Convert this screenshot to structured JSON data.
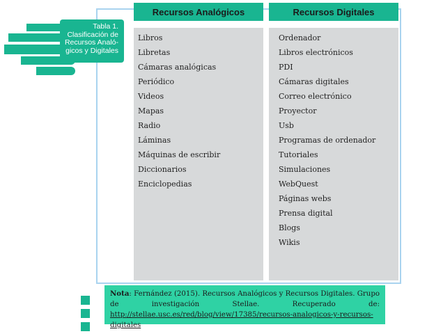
{
  "table_tag": {
    "line1": "Tabla 1.",
    "line2": "Clasificación de Recursos Analó-gicos y Digitales"
  },
  "columns": [
    {
      "header": "Recursos Analógicos",
      "items": [
        "Libros",
        "Libretas",
        "Cámaras analógicas",
        "Periódico",
        "Videos",
        "Mapas",
        "Radio",
        "Láminas",
        "Máquinas de escribir",
        "Diccionarios",
        "Enciclopedias"
      ]
    },
    {
      "header": "Recursos Digitales",
      "items": [
        "Ordenador",
        "Libros electrónicos",
        "PDI",
        "Cámaras digitales",
        "Correo electrónico",
        "Proyector",
        "Usb",
        "Programas de ordenador",
        "Tutoriales",
        "Simulaciones",
        "WebQuest",
        "Páginas webs",
        "Prensa digital",
        "Blogs",
        "Wikis"
      ]
    }
  ],
  "note": {
    "label": "Nota",
    "text": ": Fernández (2015). Recursos Analógicos y Recursos Digitales. Grupo de investigación Stellae. Recuperado de: ",
    "link": "http://stellae.usc.es/red/blog/view/17385/recursos-analogicos-y-recursos-digitales"
  },
  "colors": {
    "accent": "#19b591",
    "note_bg": "#2fd2a4",
    "column_bg": "#d7d9da",
    "frame_line": "#a9d3ef"
  }
}
